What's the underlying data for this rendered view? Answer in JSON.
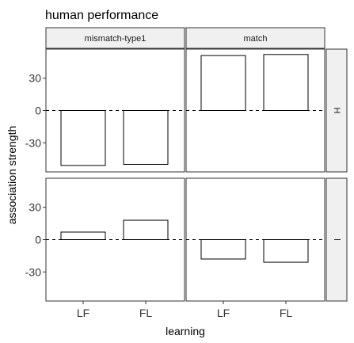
{
  "chart_data": {
    "type": "bar",
    "title": "human performance",
    "xlabel": "learning",
    "ylabel": "association strength",
    "categories": [
      "LF",
      "FL"
    ],
    "ylim": [
      -57,
      57
    ],
    "yticks": [
      -30,
      0,
      30
    ],
    "col_facets": [
      "mismatch-type1",
      "match"
    ],
    "row_facets": [
      "H",
      "l"
    ],
    "grid": false,
    "panels": [
      {
        "row": "H",
        "col": "mismatch-type1",
        "values": [
          -51,
          -50
        ]
      },
      {
        "row": "H",
        "col": "match",
        "values": [
          51,
          52
        ]
      },
      {
        "row": "l",
        "col": "mismatch-type1",
        "values": [
          7,
          18
        ]
      },
      {
        "row": "l",
        "col": "match",
        "values": [
          -18,
          -21
        ]
      }
    ]
  }
}
